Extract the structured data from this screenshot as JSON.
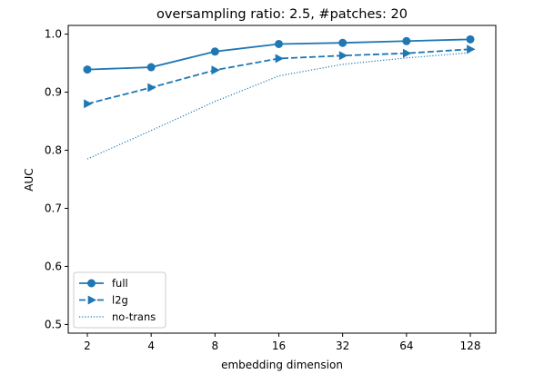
{
  "chart_data": {
    "type": "line",
    "title": "oversampling ratio: 2.5, #patches: 20",
    "xlabel": "embedding dimension",
    "ylabel": "AUC",
    "x": [
      "2",
      "4",
      "8",
      "16",
      "32",
      "64",
      "128"
    ],
    "yticks": [
      "0.5",
      "0.6",
      "0.7",
      "0.8",
      "0.9",
      "1.0"
    ],
    "ylim": [
      0.485,
      1.015
    ],
    "grid": false,
    "legend_position": "lower-left",
    "color": "#1f77b4",
    "series": [
      {
        "name": "full",
        "style": "solid-circle",
        "values": [
          0.939,
          0.943,
          0.97,
          0.983,
          0.985,
          0.988,
          0.991
        ]
      },
      {
        "name": "l2g",
        "style": "dashed-triangle",
        "values": [
          0.88,
          0.908,
          0.938,
          0.958,
          0.963,
          0.967,
          0.974
        ]
      },
      {
        "name": "no-trans",
        "style": "dotted",
        "values": [
          0.785,
          0.834,
          0.884,
          0.928,
          0.948,
          0.959,
          0.968
        ]
      }
    ]
  }
}
